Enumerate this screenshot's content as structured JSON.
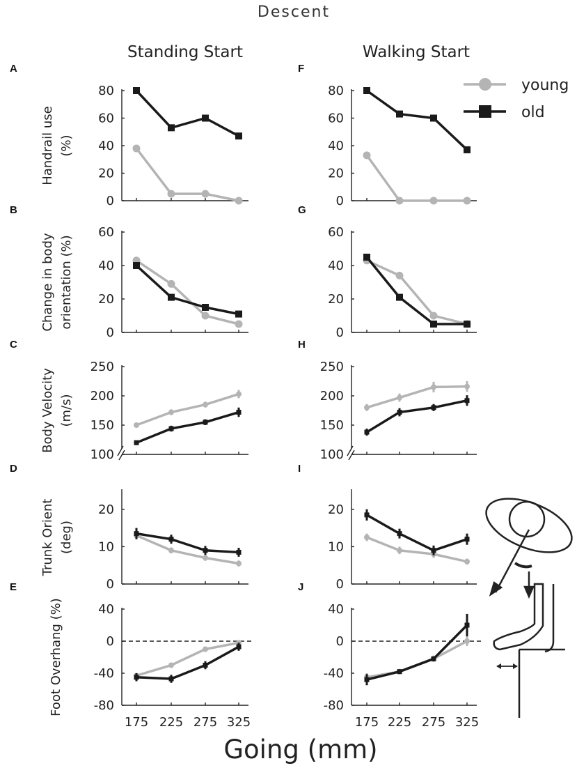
{
  "figure": {
    "title": "Descent",
    "col_titles": [
      "Standing Start",
      "Walking Start"
    ],
    "xlabel": "Going (mm)",
    "legend": [
      {
        "label": "young",
        "color": "#b4b4b4",
        "marker": "circle"
      },
      {
        "label": "old",
        "color": "#1a1a1a",
        "marker": "square"
      }
    ],
    "colors": {
      "young": "#b4b4b4",
      "old": "#1a1a1a"
    }
  },
  "chart_data": [
    {
      "id": "A",
      "type": "line",
      "title": "",
      "xlabel": "",
      "ylabel": "Handrail use (%)",
      "categories": [
        "175",
        "225",
        "275",
        "325"
      ],
      "ylim": [
        0,
        80
      ],
      "yticks": [
        {
          "v": 0,
          "label": "0"
        },
        {
          "v": 20,
          "label": "20"
        },
        {
          "v": 40,
          "label": "40"
        },
        {
          "v": 60,
          "label": "60"
        },
        {
          "v": 80,
          "label": "80"
        }
      ],
      "series": [
        {
          "name": "young",
          "values": [
            38,
            5,
            5,
            0
          ]
        },
        {
          "name": "old",
          "values": [
            80,
            53,
            60,
            47
          ]
        }
      ]
    },
    {
      "id": "B",
      "type": "line",
      "title": "",
      "xlabel": "",
      "ylabel": "Change in body orientation (%)",
      "categories": [
        "175",
        "225",
        "275",
        "325"
      ],
      "ylim": [
        0,
        60
      ],
      "yticks": [
        {
          "v": 0,
          "label": "0"
        },
        {
          "v": 20,
          "label": "20"
        },
        {
          "v": 40,
          "label": "40"
        },
        {
          "v": 60,
          "label": "60"
        }
      ],
      "series": [
        {
          "name": "young",
          "values": [
            43,
            29,
            10,
            5
          ]
        },
        {
          "name": "old",
          "values": [
            40,
            21,
            15,
            11
          ]
        }
      ]
    },
    {
      "id": "C",
      "type": "line",
      "title": "",
      "xlabel": "",
      "ylabel": "Body Velocity (m/s)",
      "categories": [
        "175",
        "225",
        "275",
        "325"
      ],
      "ylim": [
        100,
        250
      ],
      "axis_break": true,
      "yticks": [
        {
          "v": 100,
          "label": "100"
        },
        {
          "v": 150,
          "label": "150"
        },
        {
          "v": 200,
          "label": "200"
        },
        {
          "v": 250,
          "label": "250"
        }
      ],
      "series": [
        {
          "name": "young",
          "values": [
            150,
            172,
            185,
            203
          ],
          "errors": [
            4,
            5,
            5,
            7
          ]
        },
        {
          "name": "old",
          "values": [
            120,
            144,
            155,
            172
          ],
          "errors": [
            4,
            5,
            5,
            8
          ]
        }
      ]
    },
    {
      "id": "D",
      "type": "line",
      "title": "",
      "xlabel": "",
      "ylabel": "Trunk Orient (deg)",
      "categories": [
        "175",
        "225",
        "275",
        "325"
      ],
      "ylim": [
        0,
        25
      ],
      "yticks": [
        {
          "v": 0,
          "label": "0"
        },
        {
          "v": 10,
          "label": "10"
        },
        {
          "v": 20,
          "label": "20"
        }
      ],
      "series": [
        {
          "name": "young",
          "values": [
            13,
            9,
            7,
            5.5
          ],
          "errors": [
            1,
            0.8,
            0.8,
            0.8
          ]
        },
        {
          "name": "old",
          "values": [
            13.5,
            12,
            9,
            8.5
          ],
          "errors": [
            1.5,
            1.2,
            1.2,
            1.2
          ]
        }
      ]
    },
    {
      "id": "E",
      "type": "line",
      "title": "",
      "xlabel": "",
      "ylabel": "Foot Overhang (%)",
      "categories": [
        "175",
        "225",
        "275",
        "325"
      ],
      "ylim": [
        -80,
        40
      ],
      "zero_line": true,
      "yticks": [
        {
          "v": -80,
          "label": "-80"
        },
        {
          "v": -40,
          "label": "-40"
        },
        {
          "v": 0,
          "label": "0"
        },
        {
          "v": 40,
          "label": "40"
        }
      ],
      "series": [
        {
          "name": "young",
          "values": [
            -43,
            -30,
            -10,
            -2
          ],
          "errors": [
            3,
            3,
            3,
            3
          ]
        },
        {
          "name": "old",
          "values": [
            -45,
            -47,
            -30,
            -7
          ],
          "errors": [
            5,
            5,
            5,
            5
          ]
        }
      ]
    },
    {
      "id": "F",
      "type": "line",
      "title": "",
      "xlabel": "",
      "ylabel": "",
      "categories": [
        "175",
        "225",
        "275",
        "325"
      ],
      "ylim": [
        0,
        80
      ],
      "yticks": [
        {
          "v": 0,
          "label": "0"
        },
        {
          "v": 20,
          "label": "20"
        },
        {
          "v": 40,
          "label": "40"
        },
        {
          "v": 60,
          "label": "60"
        },
        {
          "v": 80,
          "label": "80"
        }
      ],
      "series": [
        {
          "name": "young",
          "values": [
            33,
            0,
            0,
            0
          ]
        },
        {
          "name": "old",
          "values": [
            80,
            63,
            60,
            37
          ]
        }
      ]
    },
    {
      "id": "G",
      "type": "line",
      "title": "",
      "xlabel": "",
      "ylabel": "",
      "categories": [
        "175",
        "225",
        "275",
        "325"
      ],
      "ylim": [
        0,
        60
      ],
      "yticks": [
        {
          "v": 0,
          "label": "0"
        },
        {
          "v": 20,
          "label": "20"
        },
        {
          "v": 40,
          "label": "40"
        },
        {
          "v": 60,
          "label": "60"
        }
      ],
      "series": [
        {
          "name": "young",
          "values": [
            43,
            34,
            10,
            5
          ]
        },
        {
          "name": "old",
          "values": [
            45,
            21,
            5,
            5
          ]
        }
      ]
    },
    {
      "id": "H",
      "type": "line",
      "title": "",
      "xlabel": "",
      "ylabel": "",
      "categories": [
        "175",
        "225",
        "275",
        "325"
      ],
      "ylim": [
        100,
        250
      ],
      "axis_break": true,
      "yticks": [
        {
          "v": 100,
          "label": "100"
        },
        {
          "v": 150,
          "label": "150"
        },
        {
          "v": 200,
          "label": "200"
        },
        {
          "v": 250,
          "label": "250"
        }
      ],
      "series": [
        {
          "name": "young",
          "values": [
            180,
            197,
            215,
            216
          ],
          "errors": [
            6,
            7,
            9,
            9
          ]
        },
        {
          "name": "old",
          "values": [
            138,
            172,
            180,
            192
          ],
          "errors": [
            6,
            7,
            6,
            9
          ]
        }
      ]
    },
    {
      "id": "I",
      "type": "line",
      "title": "",
      "xlabel": "",
      "ylabel": "",
      "categories": [
        "175",
        "225",
        "275",
        "325"
      ],
      "ylim": [
        0,
        25
      ],
      "yticks": [
        {
          "v": 0,
          "label": "0"
        },
        {
          "v": 10,
          "label": "10"
        },
        {
          "v": 20,
          "label": "20"
        }
      ],
      "series": [
        {
          "name": "young",
          "values": [
            12.5,
            9,
            8,
            6
          ],
          "errors": [
            1,
            1,
            1,
            0.8
          ]
        },
        {
          "name": "old",
          "values": [
            18.5,
            13.5,
            9,
            12
          ],
          "errors": [
            1.5,
            1.3,
            1.3,
            1.5
          ]
        }
      ]
    },
    {
      "id": "J",
      "type": "line",
      "title": "",
      "xlabel": "",
      "ylabel": "",
      "categories": [
        "175",
        "225",
        "275",
        "325"
      ],
      "ylim": [
        -80,
        40
      ],
      "zero_line": true,
      "show_xticks": true,
      "yticks": [
        {
          "v": -80,
          "label": "-80"
        },
        {
          "v": -40,
          "label": "-40"
        },
        {
          "v": 0,
          "label": "0"
        },
        {
          "v": 40,
          "label": "40"
        }
      ],
      "series": [
        {
          "name": "young",
          "values": [
            -45,
            -38,
            -22,
            0
          ],
          "errors": [
            5,
            3,
            4,
            6
          ]
        },
        {
          "name": "old",
          "values": [
            -48,
            -38,
            -22,
            20
          ],
          "errors": [
            7,
            3,
            3,
            14
          ]
        }
      ]
    }
  ]
}
